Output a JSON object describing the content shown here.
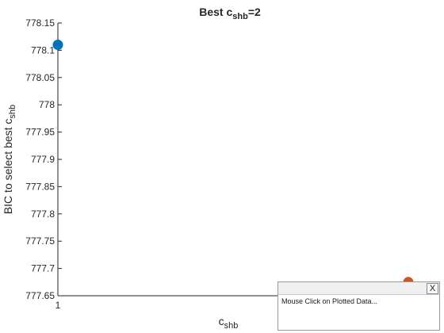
{
  "chart_data": {
    "type": "scatter",
    "title": {
      "prefix": "Best c",
      "subscript": "shb",
      "suffix": "=2"
    },
    "xlabel": {
      "main": "c",
      "subscript": "shb"
    },
    "ylabel": {
      "main": "BIC to select best c",
      "subscript": "shb"
    },
    "xlim": [
      1,
      2
    ],
    "ylim": [
      777.65,
      778.15
    ],
    "xticks": [
      1
    ],
    "xticklabels": [
      "1"
    ],
    "yticks": [
      777.65,
      777.7,
      777.75,
      777.8,
      777.85,
      777.9,
      777.95,
      778,
      778.05,
      778.1,
      778.15
    ],
    "yticklabels": [
      "777.65",
      "777.7",
      "777.75",
      "777.8",
      "777.85",
      "777.9",
      "777.95",
      "778",
      "778.05",
      "778.1",
      "778.15"
    ],
    "grid": false,
    "points": [
      {
        "x": 1,
        "y": 778.11,
        "color": "#0072BD"
      },
      {
        "x": 2,
        "y": 777.675,
        "color": "#D95319"
      }
    ]
  },
  "datatip": {
    "close_label": "X",
    "text": "Mouse Click on Plotted Data..."
  }
}
